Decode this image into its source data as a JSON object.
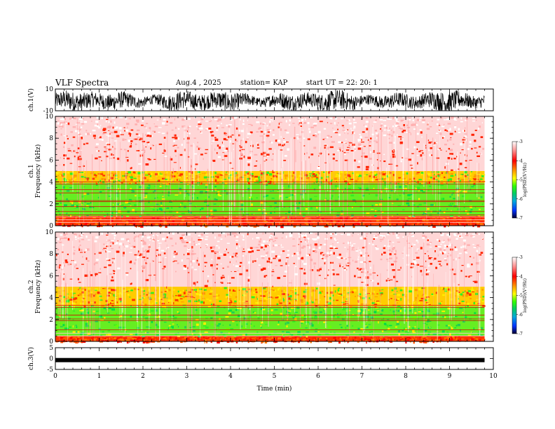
{
  "header": {
    "title": "VLF Spectra",
    "date": "Aug.4 , 2025",
    "station": "station= KAP",
    "start": "start UT = 22: 20: 1"
  },
  "colors": {
    "spec_background": "#ffffff",
    "spec_low": "#00dd33",
    "spec_mid": "#ffff00",
    "spec_high": "#ff2200",
    "waveform": "#000000"
  },
  "chart_data": [
    {
      "type": "line",
      "name": "ch1-waveform",
      "ylabel": "ch.1(V)",
      "ylim": [
        -10,
        10
      ],
      "yticks": [
        "10",
        "-10"
      ],
      "xlim": [
        0,
        10
      ],
      "note": "dense noisy waveform roughly between -10 and 8 V over 0-9.8 min"
    },
    {
      "type": "heatmap",
      "name": "ch1-spectrogram",
      "ylabel": "ch.1",
      "ylabel2": "Frequency (kHz)",
      "ylim": [
        0,
        10
      ],
      "yticks": [
        "0",
        "2",
        "4",
        "6",
        "8",
        "10"
      ],
      "xlim": [
        0,
        10
      ],
      "data_end_min": 9.8,
      "colorbar": {
        "label": "log(PSD)(V²/Hz)",
        "range": [
          -7,
          -3
        ],
        "ticks": [
          "-3",
          "-4",
          "-5",
          "-6",
          "-7"
        ]
      },
      "bands_khz": [
        {
          "from": 0,
          "to": 0.9,
          "level": "high"
        },
        {
          "from": 0.9,
          "to": 3.9,
          "level": "low"
        },
        {
          "from": 3.9,
          "to": 5,
          "level": "mid"
        },
        {
          "from": 5,
          "to": 10,
          "level": "high-sparse"
        }
      ],
      "lines_khz": [
        0.3,
        0.55,
        0.8,
        1.0,
        1.3,
        1.75,
        2.2,
        2.3,
        3.0,
        3.3,
        3.8,
        4.0
      ]
    },
    {
      "type": "heatmap",
      "name": "ch2-spectrogram",
      "ylabel": "ch.2",
      "ylabel2": "Frequency (kHz)",
      "ylim": [
        0,
        10
      ],
      "yticks": [
        "0",
        "2",
        "4",
        "6",
        "8",
        "10"
      ],
      "xlim": [
        0,
        10
      ],
      "data_end_min": 9.8,
      "colorbar": {
        "label": "log(PSD)(V²/Hz)",
        "range": [
          -7,
          -3
        ],
        "ticks": [
          "-3",
          "-4",
          "-5",
          "-6",
          "-7"
        ]
      },
      "bands_khz": [
        {
          "from": 0,
          "to": 0.5,
          "level": "high"
        },
        {
          "from": 0.5,
          "to": 3.2,
          "level": "low"
        },
        {
          "from": 3.2,
          "to": 5,
          "level": "mid"
        },
        {
          "from": 5,
          "to": 10,
          "level": "high-sparse"
        }
      ],
      "lines_khz": [
        0.5,
        0.75,
        1.05,
        1.9,
        2.05,
        2.4,
        3.1,
        3.3
      ]
    },
    {
      "type": "line",
      "name": "ch3-waveform",
      "ylabel": "ch.3(V)",
      "ylim": [
        -5,
        5
      ],
      "yticks": [
        "5",
        "0",
        "-5"
      ],
      "xlim": [
        0,
        10
      ],
      "note": "nearly constant thick trace around -0.7 V"
    }
  ],
  "x_axis": {
    "label": "Time (min)",
    "ticks": [
      "0",
      "1",
      "2",
      "3",
      "4",
      "5",
      "6",
      "7",
      "8",
      "9",
      "10"
    ]
  }
}
